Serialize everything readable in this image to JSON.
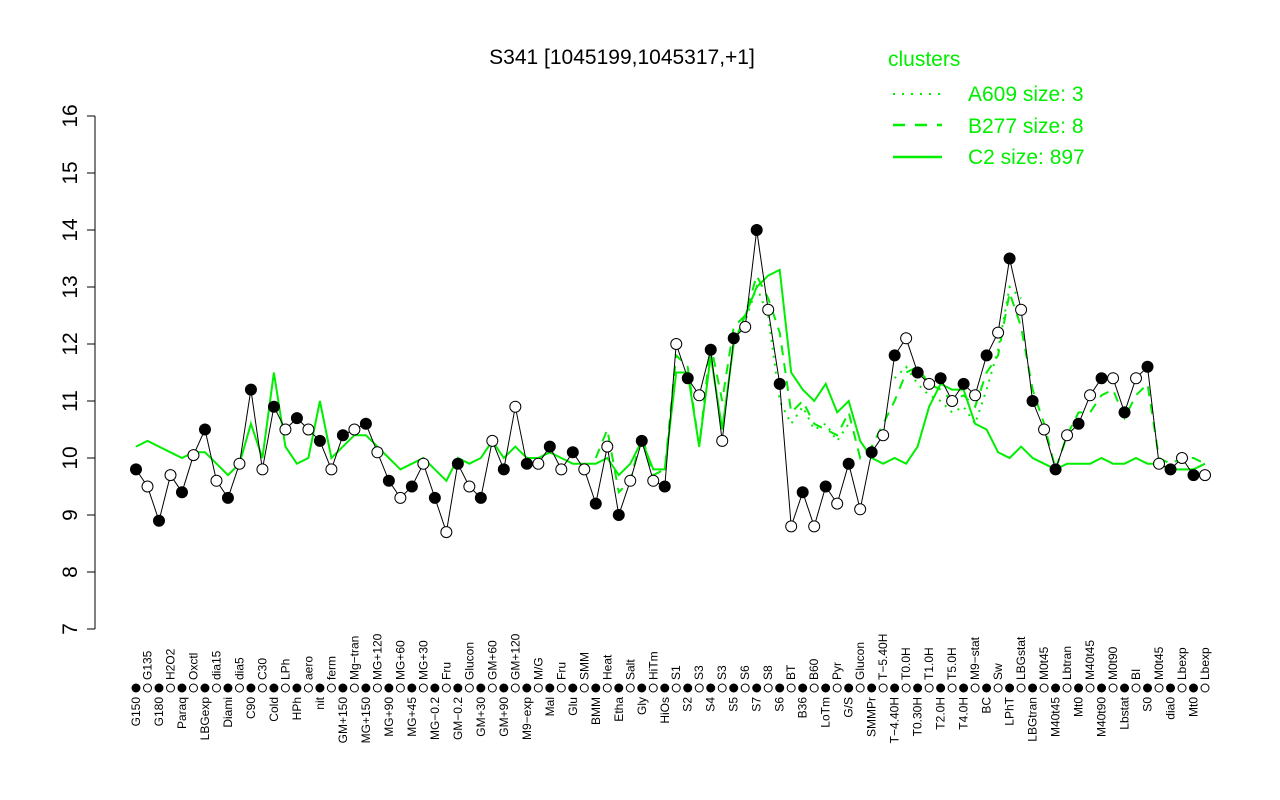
{
  "chart_data": {
    "type": "line",
    "title": "S341 [1045199,1045317,+1]",
    "xlabel": "",
    "ylabel": "",
    "ylim": [
      7,
      16
    ],
    "yticks": [
      7,
      8,
      9,
      10,
      11,
      12,
      13,
      14,
      15,
      16
    ],
    "grid": false,
    "legend": {
      "title": "clusters",
      "placement": "top-right",
      "entries": [
        {
          "name": "A609 size: 3",
          "style": "dotted"
        },
        {
          "name": "B277 size: 8",
          "style": "dashed"
        },
        {
          "name": "C2 size: 897",
          "style": "solid"
        }
      ]
    },
    "colors": {
      "points": "#000000",
      "clusters": "#00ee00"
    },
    "categories": [
      "G150",
      "G135",
      "G180",
      "H2O2",
      "Paraq",
      "Oxctl",
      "LBGexp",
      "dia15",
      "Diami",
      "dia5",
      "C90",
      "C30",
      "Cold",
      "LPh",
      "HPh",
      "aero",
      "nit",
      "ferm",
      "GM+150",
      "Mg−tran",
      "MG+150",
      "MG+120",
      "MG+90",
      "MG+60",
      "MG+45",
      "MG+30",
      "MG−0.2",
      "Fru",
      "GM−0.2",
      "Glucon",
      "GM+30",
      "GM+60",
      "GM+90",
      "GM+120",
      "M9−exp",
      "M/G",
      "Mal",
      "Fru",
      "Glu",
      "SMM",
      "BMM",
      "Heat",
      "Etha",
      "Salt",
      "Gly",
      "HiTm",
      "HiOs",
      "S1",
      "S2",
      "S3",
      "S4",
      "S3",
      "S5",
      "S6",
      "S7",
      "S8",
      "S6",
      "BT",
      "B36",
      "B60",
      "LoTm",
      "Pyr",
      "G/S",
      "Glucon",
      "SMMPr",
      "T−5.40H",
      "T−4.40H",
      "T0.0H",
      "T0.30H",
      "T1.0H",
      "T2.0H",
      "T5.0H",
      "T4.0H",
      "M9−stat",
      "BC",
      "Sw",
      "LPhT",
      "LBGstat",
      "LBGtran",
      "M0t45",
      "M40t45",
      "Lbtran",
      "Mt0",
      "M40t45",
      "M40t90",
      "M0t90",
      "Lbstat",
      "BI",
      "S0",
      "M0t45",
      "dia0",
      "Lbexp",
      "Mt0",
      "Lbexp"
    ],
    "values": [
      9.8,
      9.5,
      8.9,
      9.7,
      9.4,
      10.05,
      10.5,
      9.6,
      9.3,
      9.9,
      11.2,
      9.8,
      10.9,
      10.5,
      10.7,
      10.5,
      10.3,
      9.8,
      10.4,
      10.5,
      10.6,
      10.1,
      9.6,
      9.3,
      9.5,
      9.9,
      9.3,
      8.7,
      9.9,
      9.5,
      9.3,
      10.3,
      9.8,
      10.9,
      9.9,
      9.9,
      10.2,
      9.8,
      10.1,
      9.8,
      9.2,
      10.2,
      9.0,
      9.6,
      10.3,
      9.6,
      9.5,
      12.0,
      11.4,
      11.1,
      11.9,
      10.3,
      12.1,
      12.3,
      14.0,
      12.6,
      11.3,
      8.8,
      9.4,
      8.8,
      9.5,
      9.2,
      9.9,
      9.1,
      10.1,
      10.4,
      11.8,
      12.1,
      11.5,
      11.3,
      11.4,
      11.0,
      11.3,
      11.1,
      11.8,
      12.2,
      13.5,
      12.6,
      11.0,
      10.5,
      9.8,
      10.4,
      10.6,
      11.1,
      11.4,
      11.4,
      10.8,
      11.4,
      11.6,
      9.9,
      9.8,
      10.0,
      9.7,
      9.7
    ],
    "series": [
      {
        "name": "C2 size: 897",
        "style": "solid",
        "values": [
          10.2,
          10.3,
          10.2,
          10.1,
          10.0,
          10.1,
          10.1,
          9.9,
          9.7,
          9.9,
          10.6,
          10.0,
          11.5,
          10.2,
          9.9,
          10.0,
          11.0,
          10.0,
          10.2,
          10.4,
          10.4,
          10.2,
          10.0,
          9.8,
          9.9,
          10.0,
          9.8,
          9.6,
          10.0,
          9.9,
          10.0,
          10.3,
          10.0,
          10.2,
          10.0,
          10.0,
          10.1,
          10.0,
          9.9,
          9.9,
          9.9,
          10.0,
          9.7,
          9.9,
          10.3,
          9.8,
          9.8,
          11.5,
          11.5,
          10.2,
          11.8,
          10.5,
          12.0,
          12.5,
          13.0,
          13.2,
          13.3,
          11.5,
          11.2,
          11.0,
          11.3,
          10.8,
          11.0,
          10.3,
          10.0,
          9.9,
          10.0,
          9.9,
          10.2,
          10.9,
          11.3,
          11.2,
          11.2,
          10.6,
          10.5,
          10.1,
          10.0,
          10.2,
          10.0,
          9.9,
          9.8,
          9.9,
          9.9,
          9.9,
          10.0,
          9.9,
          9.9,
          10.0,
          9.9,
          9.9,
          9.8,
          9.8,
          9.8,
          9.9
        ]
      },
      {
        "name": "B277 size: 8",
        "style": "dashed",
        "values": [
          null,
          null,
          null,
          null,
          null,
          null,
          null,
          null,
          null,
          null,
          null,
          null,
          null,
          null,
          null,
          null,
          null,
          null,
          null,
          null,
          null,
          null,
          null,
          null,
          null,
          null,
          null,
          null,
          null,
          null,
          null,
          null,
          null,
          null,
          null,
          null,
          null,
          null,
          null,
          null,
          10.0,
          10.5,
          9.4,
          9.6,
          10.4,
          9.7,
          9.8,
          11.8,
          11.6,
          10.2,
          12.0,
          11.0,
          12.3,
          12.5,
          13.2,
          12.8,
          12.2,
          10.8,
          11.0,
          10.6,
          10.5,
          10.4,
          10.8,
          10.0,
          10.2,
          10.6,
          11.0,
          11.5,
          11.6,
          11.3,
          11.2,
          11.0,
          11.1,
          10.9,
          11.5,
          11.8,
          12.9,
          12.3,
          11.2,
          10.6,
          9.8,
          10.4,
          10.8,
          10.8,
          11.1,
          11.2,
          10.7,
          11.1,
          11.3,
          10.0,
          9.9,
          10.0,
          10.0,
          9.9
        ]
      },
      {
        "name": "A609 size: 3",
        "style": "dotted",
        "values": [
          null,
          null,
          null,
          null,
          null,
          null,
          null,
          null,
          null,
          null,
          null,
          null,
          null,
          null,
          null,
          null,
          null,
          null,
          null,
          null,
          null,
          null,
          null,
          null,
          null,
          null,
          null,
          null,
          null,
          null,
          null,
          null,
          null,
          null,
          null,
          null,
          null,
          null,
          null,
          null,
          null,
          null,
          null,
          null,
          null,
          null,
          null,
          null,
          null,
          null,
          null,
          null,
          12.1,
          12.4,
          13.0,
          12.5,
          11.0,
          10.6,
          10.9,
          10.5,
          10.6,
          10.3,
          10.6,
          null,
          null,
          null,
          11.4,
          11.6,
          11.3,
          11.1,
          11.0,
          10.8,
          10.9,
          10.6,
          11.2,
          11.9,
          13.0,
          12.8,
          null,
          null,
          null,
          null,
          null,
          null,
          null,
          null,
          null,
          null,
          null,
          null,
          null,
          null,
          null,
          null
        ]
      }
    ]
  }
}
